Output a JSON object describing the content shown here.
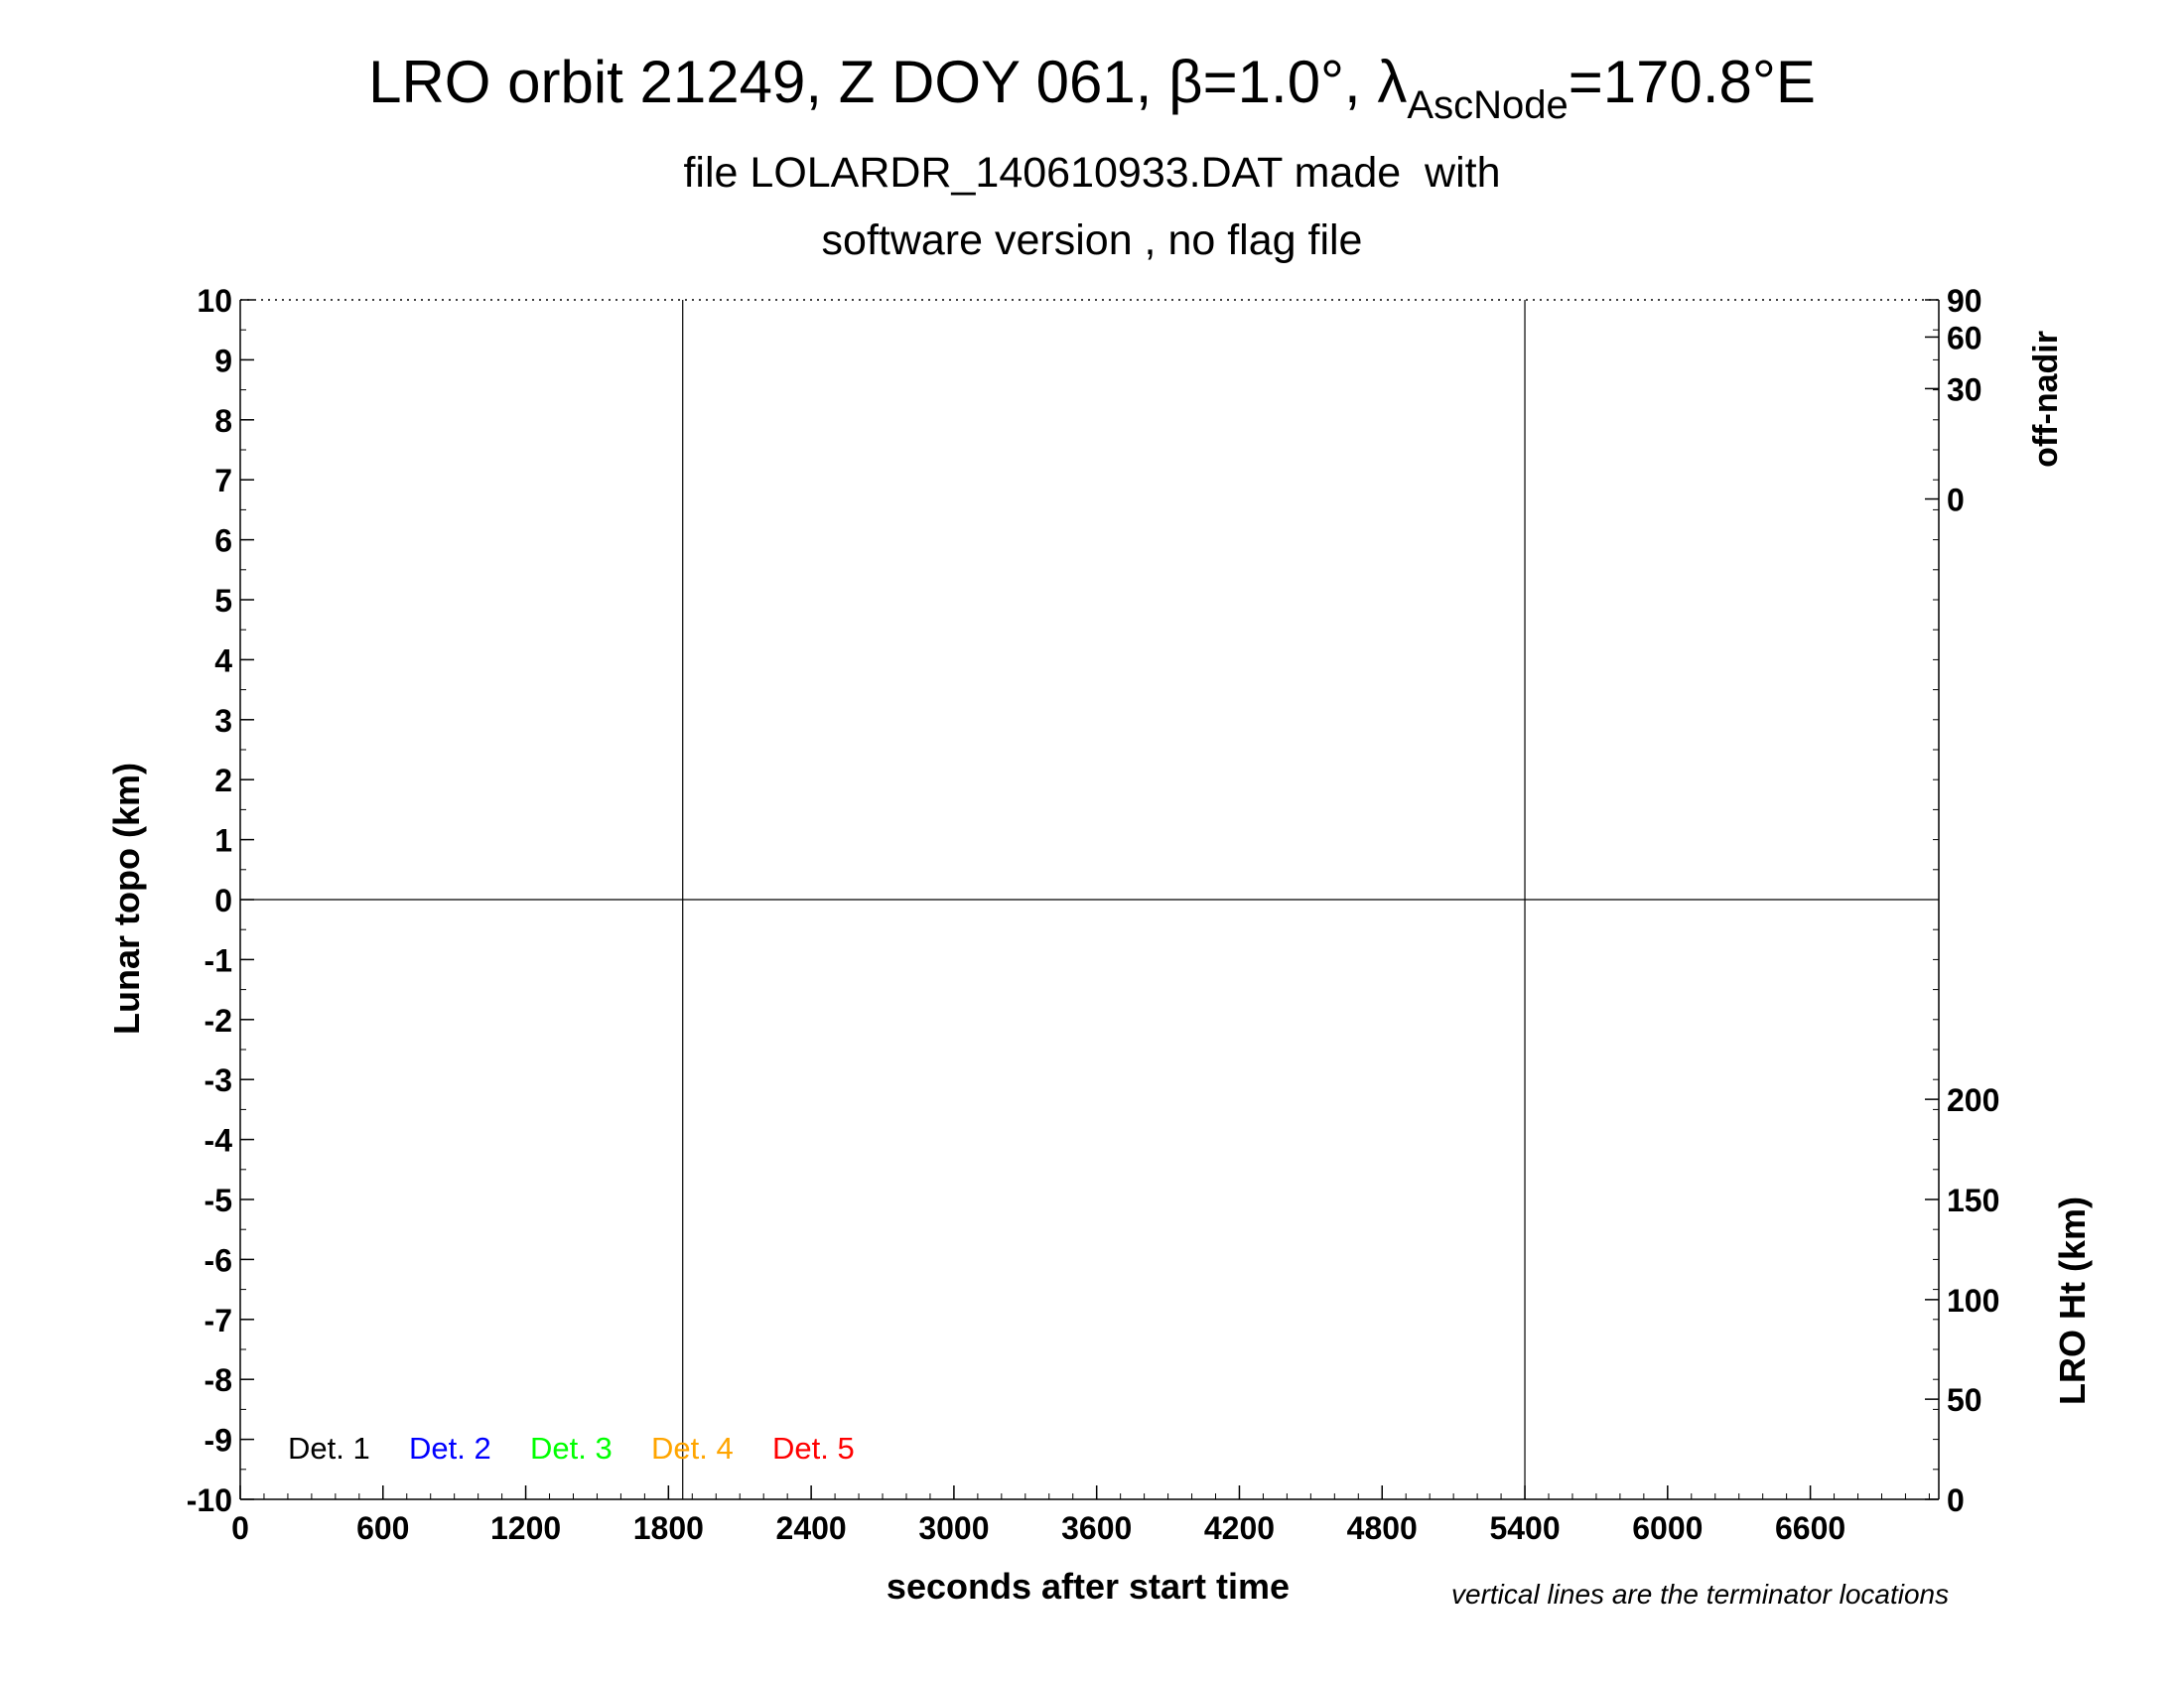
{
  "chart_data": {
    "type": "line",
    "title": {
      "prefix": "LRO orbit 21249, Z DOY 061, ",
      "beta_symbol": "β",
      "beta_value": "=1.0°, ",
      "lambda_symbol": "λ",
      "lambda_subscript": "AscNode",
      "lambda_value": "=170.8°E"
    },
    "subtitle_line1": "file LOLARDR_140610933.DAT made  with",
    "subtitle_line2": "software version , no flag file",
    "xlabel": "seconds after start time",
    "ylabel": "Lunar topo (km)",
    "right_upper_label": "off-nadir",
    "right_lower_label": "LRO Ht (km)",
    "footnote": "vertical lines are the terminator locations",
    "xlim": [
      0,
      7140
    ],
    "ylim": [
      -10,
      10
    ],
    "x_ticks": [
      0,
      600,
      1200,
      1800,
      2400,
      3000,
      3600,
      4200,
      4800,
      5400,
      6000,
      6600
    ],
    "y_ticks": [
      10,
      9,
      8,
      7,
      6,
      5,
      4,
      3,
      2,
      1,
      0,
      -1,
      -2,
      -3,
      -4,
      -5,
      -6,
      -7,
      -8,
      -9,
      -10
    ],
    "right_upper_ticks": [
      {
        "label": "90",
        "y_km": 10
      },
      {
        "label": "60",
        "y_km": 9.38
      },
      {
        "label": "30",
        "y_km": 8.52
      },
      {
        "label": "0",
        "y_km": 6.68
      }
    ],
    "right_lower_ticks": [
      {
        "label": "200",
        "y_km": -3.33
      },
      {
        "label": "150",
        "y_km": -5.0
      },
      {
        "label": "100",
        "y_km": -6.67
      },
      {
        "label": "50",
        "y_km": -8.33
      },
      {
        "label": "0",
        "y_km": -10
      }
    ],
    "terminator_x": [
      1860,
      5400
    ],
    "zero_line_y": 0,
    "grid": false,
    "legend_position": "bottom-left",
    "series": [
      {
        "name": "Det. 1",
        "color": "#000000",
        "x": [],
        "y": []
      },
      {
        "name": "Det. 2",
        "color": "#0000ff",
        "x": [],
        "y": []
      },
      {
        "name": "Det. 3",
        "color": "#00ff00",
        "x": [],
        "y": []
      },
      {
        "name": "Det. 4",
        "color": "#ffa500",
        "x": [],
        "y": []
      },
      {
        "name": "Det. 5",
        "color": "#ff0000",
        "x": [],
        "y": []
      }
    ]
  }
}
